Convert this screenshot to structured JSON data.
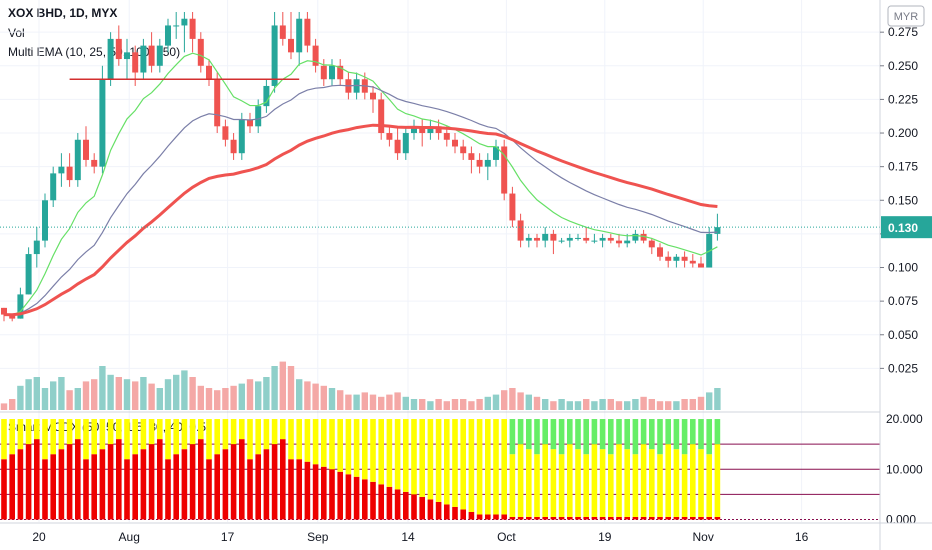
{
  "legend": {
    "symbol_line": "XOX BHD, 1D, MYX",
    "vol_label": "Vol",
    "ema_label": "Multi EMA (10, 25, 50, 100, 150)",
    "smart_label": "Smart MCDX (50, 50, 1.5, 30, 40, 0.5)"
  },
  "price_axis": {
    "currency": "MYR",
    "ticks": [
      "0.275",
      "0.250",
      "0.225",
      "0.200",
      "0.175",
      "0.150",
      "0.125",
      "0.100",
      "0.075",
      "0.050",
      "0.025"
    ],
    "last_price": "0.130"
  },
  "indicator_axis": {
    "ticks": [
      "20.000",
      "10.000",
      "0.000"
    ]
  },
  "time_axis": {
    "labels": [
      "20",
      "Aug",
      "17",
      "Sep",
      "14",
      "Oct",
      "19",
      "Nov",
      "16"
    ]
  },
  "colors": {
    "up": "#26a69a",
    "down": "#ef5350",
    "vol_up": "#8fcfc9",
    "vol_down": "#f4a8a6",
    "ema10": "#66e066",
    "ema25": "#7b7fa8",
    "ema50": "#ef5350",
    "resistance": "#d32f2f",
    "mcdx_red": "#ee0000",
    "mcdx_yellow": "#ffff00",
    "mcdx_green": "#66ee66",
    "level_line": "#880e4f"
  },
  "chart_data": [
    {
      "type": "candlestick",
      "title": "XOX BHD, 1D, MYX",
      "ylim": [
        0.0,
        0.29
      ],
      "y_unit": "MYR",
      "last_price": 0.13,
      "x_labels": [
        "20",
        "Aug",
        "17",
        "Sep",
        "14",
        "Oct",
        "19",
        "Nov",
        "16"
      ],
      "candles": [
        [
          0.07,
          0.07,
          0.06,
          0.065
        ],
        [
          0.065,
          0.065,
          0.06,
          0.062
        ],
        [
          0.062,
          0.085,
          0.062,
          0.08
        ],
        [
          0.08,
          0.115,
          0.08,
          0.11
        ],
        [
          0.11,
          0.13,
          0.1,
          0.12
        ],
        [
          0.12,
          0.155,
          0.115,
          0.15
        ],
        [
          0.15,
          0.175,
          0.145,
          0.17
        ],
        [
          0.17,
          0.185,
          0.16,
          0.175
        ],
        [
          0.175,
          0.185,
          0.16,
          0.165
        ],
        [
          0.165,
          0.2,
          0.16,
          0.195
        ],
        [
          0.195,
          0.205,
          0.175,
          0.18
        ],
        [
          0.18,
          0.185,
          0.17,
          0.175
        ],
        [
          0.175,
          0.25,
          0.17,
          0.24
        ],
        [
          0.24,
          0.275,
          0.235,
          0.27
        ],
        [
          0.27,
          0.28,
          0.25,
          0.255
        ],
        [
          0.255,
          0.27,
          0.24,
          0.26
        ],
        [
          0.26,
          0.265,
          0.235,
          0.245
        ],
        [
          0.245,
          0.27,
          0.24,
          0.265
        ],
        [
          0.265,
          0.275,
          0.245,
          0.25
        ],
        [
          0.25,
          0.27,
          0.245,
          0.265
        ],
        [
          0.265,
          0.285,
          0.26,
          0.28
        ],
        [
          0.28,
          0.29,
          0.27,
          0.28
        ],
        [
          0.28,
          0.29,
          0.26,
          0.285
        ],
        [
          0.285,
          0.29,
          0.26,
          0.27
        ],
        [
          0.27,
          0.275,
          0.245,
          0.25
        ],
        [
          0.25,
          0.255,
          0.235,
          0.24
        ],
        [
          0.24,
          0.245,
          0.2,
          0.205
        ],
        [
          0.205,
          0.21,
          0.19,
          0.195
        ],
        [
          0.195,
          0.2,
          0.18,
          0.185
        ],
        [
          0.185,
          0.215,
          0.18,
          0.21
        ],
        [
          0.21,
          0.215,
          0.2,
          0.205
        ],
        [
          0.205,
          0.225,
          0.2,
          0.22
        ],
        [
          0.22,
          0.24,
          0.215,
          0.235
        ],
        [
          0.235,
          0.29,
          0.23,
          0.28
        ],
        [
          0.28,
          0.29,
          0.265,
          0.27
        ],
        [
          0.27,
          0.29,
          0.255,
          0.26
        ],
        [
          0.26,
          0.29,
          0.25,
          0.285
        ],
        [
          0.285,
          0.29,
          0.26,
          0.265
        ],
        [
          0.265,
          0.27,
          0.245,
          0.25
        ],
        [
          0.25,
          0.255,
          0.235,
          0.24
        ],
        [
          0.24,
          0.255,
          0.235,
          0.25
        ],
        [
          0.25,
          0.255,
          0.235,
          0.24
        ],
        [
          0.24,
          0.245,
          0.225,
          0.23
        ],
        [
          0.23,
          0.245,
          0.225,
          0.24
        ],
        [
          0.24,
          0.245,
          0.225,
          0.23
        ],
        [
          0.23,
          0.235,
          0.215,
          0.225
        ],
        [
          0.225,
          0.23,
          0.195,
          0.2
        ],
        [
          0.2,
          0.205,
          0.19,
          0.195
        ],
        [
          0.195,
          0.205,
          0.18,
          0.185
        ],
        [
          0.185,
          0.205,
          0.18,
          0.2
        ],
        [
          0.2,
          0.21,
          0.195,
          0.205
        ],
        [
          0.205,
          0.21,
          0.19,
          0.2
        ],
        [
          0.2,
          0.21,
          0.195,
          0.205
        ],
        [
          0.205,
          0.21,
          0.195,
          0.2
        ],
        [
          0.2,
          0.205,
          0.19,
          0.195
        ],
        [
          0.195,
          0.2,
          0.185,
          0.19
        ],
        [
          0.19,
          0.195,
          0.18,
          0.185
        ],
        [
          0.185,
          0.19,
          0.17,
          0.18
        ],
        [
          0.18,
          0.185,
          0.17,
          0.175
        ],
        [
          0.175,
          0.185,
          0.165,
          0.18
        ],
        [
          0.18,
          0.195,
          0.175,
          0.19
        ],
        [
          0.19,
          0.195,
          0.15,
          0.155
        ],
        [
          0.155,
          0.16,
          0.13,
          0.135
        ],
        [
          0.135,
          0.14,
          0.115,
          0.12
        ],
        [
          0.12,
          0.125,
          0.115,
          0.122
        ],
        [
          0.122,
          0.125,
          0.115,
          0.12
        ],
        [
          0.12,
          0.13,
          0.115,
          0.125
        ],
        [
          0.125,
          0.128,
          0.11,
          0.12
        ],
        [
          0.12,
          0.122,
          0.118,
          0.12
        ],
        [
          0.12,
          0.125,
          0.115,
          0.122
        ],
        [
          0.122,
          0.125,
          0.12,
          0.122
        ],
        [
          0.122,
          0.13,
          0.118,
          0.12
        ],
        [
          0.12,
          0.125,
          0.118,
          0.12
        ],
        [
          0.12,
          0.125,
          0.115,
          0.122
        ],
        [
          0.122,
          0.125,
          0.118,
          0.12
        ],
        [
          0.12,
          0.125,
          0.115,
          0.118
        ],
        [
          0.118,
          0.125,
          0.115,
          0.12
        ],
        [
          0.12,
          0.128,
          0.118,
          0.125
        ],
        [
          0.125,
          0.128,
          0.118,
          0.12
        ],
        [
          0.12,
          0.122,
          0.11,
          0.115
        ],
        [
          0.115,
          0.118,
          0.105,
          0.108
        ],
        [
          0.108,
          0.112,
          0.1,
          0.105
        ],
        [
          0.105,
          0.11,
          0.1,
          0.108
        ],
        [
          0.108,
          0.112,
          0.1,
          0.105
        ],
        [
          0.105,
          0.11,
          0.1,
          0.103
        ],
        [
          0.103,
          0.108,
          0.1,
          0.1
        ],
        [
          0.1,
          0.13,
          0.1,
          0.125
        ],
        [
          0.125,
          0.14,
          0.12,
          0.13
        ]
      ],
      "volume": [
        6,
        10,
        22,
        28,
        30,
        20,
        26,
        30,
        18,
        20,
        26,
        28,
        40,
        32,
        30,
        28,
        26,
        30,
        24,
        20,
        28,
        32,
        36,
        30,
        22,
        20,
        18,
        20,
        22,
        24,
        28,
        26,
        30,
        40,
        44,
        40,
        28,
        26,
        24,
        22,
        20,
        18,
        14,
        14,
        16,
        14,
        12,
        14,
        16,
        12,
        10,
        10,
        8,
        10,
        8,
        10,
        10,
        8,
        10,
        12,
        14,
        18,
        20,
        16,
        14,
        12,
        10,
        8,
        10,
        8,
        8,
        10,
        8,
        10,
        10,
        8,
        8,
        10,
        12,
        10,
        8,
        8,
        8,
        10,
        10,
        12,
        16,
        20
      ],
      "ema_series": [
        {
          "name": "EMA 10",
          "color": "#66e066"
        },
        {
          "name": "EMA 25",
          "color": "#7b7fa8"
        },
        {
          "name": "EMA 50",
          "color": "#ef5350"
        }
      ],
      "resistance_level": 0.24
    },
    {
      "type": "bar",
      "title": "Smart MCDX (50, 50, 1.5, 30, 40, 0.5)",
      "ylim": [
        -0.5,
        21
      ],
      "levels": [
        5,
        10,
        15
      ],
      "note": "stacked red (bottom) / yellow (middle) / green (top) bars totaling 20"
    }
  ]
}
